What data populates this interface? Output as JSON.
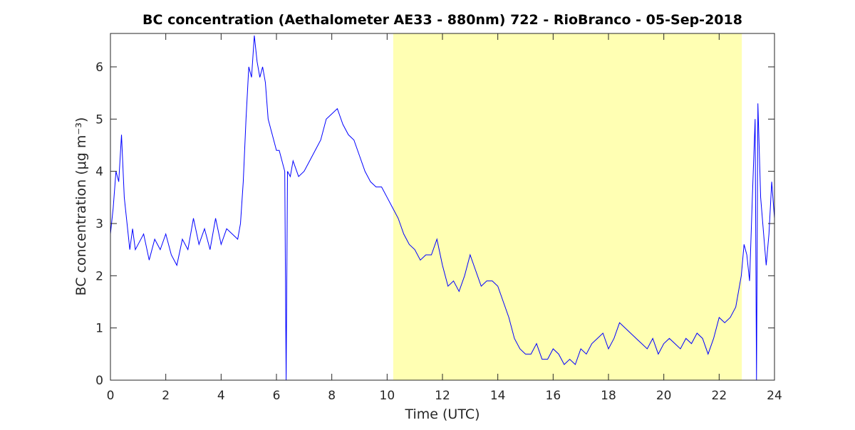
{
  "chart_data": {
    "type": "line",
    "title": "BC concentration (Aethalometer AE33 - 880nm) 722 - RioBranco - 05-Sep-2018",
    "x_label": "Time (UTC)",
    "y_label": "BC concentration (μg m⁻³)",
    "xlim": [
      0,
      24
    ],
    "ylim": [
      0,
      6.64
    ],
    "xticks": [
      0,
      2,
      4,
      6,
      8,
      10,
      12,
      14,
      16,
      18,
      20,
      22,
      24
    ],
    "yticks": [
      0,
      1,
      2,
      3,
      4,
      5,
      6
    ],
    "shaded_span": [
      10.22,
      22.82
    ],
    "shaded_color": "#ffffb3",
    "grid": false,
    "series": [
      {
        "color": "#0000ff",
        "x": [
          0,
          0.1,
          0.2,
          0.3,
          0.4,
          0.5,
          0.6,
          0.7,
          0.8,
          0.9,
          1.0,
          1.2,
          1.4,
          1.6,
          1.8,
          2.0,
          2.2,
          2.4,
          2.6,
          2.8,
          3.0,
          3.2,
          3.4,
          3.6,
          3.8,
          4.0,
          4.2,
          4.4,
          4.6,
          4.7,
          4.8,
          4.9,
          5.0,
          5.1,
          5.2,
          5.3,
          5.4,
          5.5,
          5.6,
          5.7,
          5.8,
          5.9,
          6.0,
          6.1,
          6.2,
          6.3,
          6.35,
          6.4,
          6.5,
          6.6,
          6.8,
          7.0,
          7.2,
          7.4,
          7.6,
          7.8,
          8.0,
          8.2,
          8.4,
          8.6,
          8.8,
          9.0,
          9.2,
          9.4,
          9.6,
          9.8,
          10.0,
          10.2,
          10.4,
          10.6,
          10.8,
          11.0,
          11.2,
          11.4,
          11.6,
          11.8,
          12.0,
          12.2,
          12.4,
          12.6,
          12.8,
          13.0,
          13.2,
          13.4,
          13.6,
          13.8,
          14.0,
          14.2,
          14.4,
          14.6,
          14.8,
          15.0,
          15.2,
          15.4,
          15.6,
          15.8,
          16.0,
          16.2,
          16.4,
          16.6,
          16.8,
          17.0,
          17.2,
          17.4,
          17.6,
          17.8,
          18.0,
          18.2,
          18.4,
          18.6,
          18.8,
          19.0,
          19.2,
          19.4,
          19.6,
          19.8,
          20.0,
          20.2,
          20.4,
          20.6,
          20.8,
          21.0,
          21.2,
          21.4,
          21.6,
          21.8,
          22.0,
          22.2,
          22.4,
          22.6,
          22.8,
          22.9,
          23.0,
          23.1,
          23.2,
          23.3,
          23.35,
          23.4,
          23.5,
          23.7,
          23.8,
          23.9,
          24.0
        ],
        "values": [
          2.8,
          3.3,
          4.0,
          3.8,
          4.7,
          3.5,
          3.0,
          2.5,
          2.9,
          2.5,
          2.6,
          2.8,
          2.3,
          2.7,
          2.5,
          2.8,
          2.4,
          2.2,
          2.7,
          2.5,
          3.1,
          2.6,
          2.9,
          2.5,
          3.1,
          2.6,
          2.9,
          2.8,
          2.7,
          3.0,
          3.8,
          5.0,
          6.0,
          5.8,
          6.6,
          6.1,
          5.8,
          6.0,
          5.7,
          5.0,
          4.8,
          4.6,
          4.4,
          4.4,
          4.2,
          4.0,
          0.0,
          4.0,
          3.9,
          4.2,
          3.9,
          4.0,
          4.2,
          4.4,
          4.6,
          5.0,
          5.1,
          5.2,
          4.9,
          4.7,
          4.6,
          4.3,
          4.0,
          3.8,
          3.7,
          3.7,
          3.5,
          3.3,
          3.1,
          2.8,
          2.6,
          2.5,
          2.3,
          2.4,
          2.4,
          2.7,
          2.2,
          1.8,
          1.9,
          1.7,
          2.0,
          2.4,
          2.1,
          1.8,
          1.9,
          1.9,
          1.8,
          1.5,
          1.2,
          0.8,
          0.6,
          0.5,
          0.5,
          0.7,
          0.4,
          0.4,
          0.6,
          0.5,
          0.3,
          0.4,
          0.3,
          0.6,
          0.5,
          0.7,
          0.8,
          0.9,
          0.6,
          0.8,
          1.1,
          1.0,
          0.9,
          0.8,
          0.7,
          0.6,
          0.8,
          0.5,
          0.7,
          0.8,
          0.7,
          0.6,
          0.8,
          0.7,
          0.9,
          0.8,
          0.5,
          0.8,
          1.2,
          1.1,
          1.2,
          1.4,
          2.0,
          2.6,
          2.4,
          1.9,
          3.5,
          5.0,
          0.0,
          5.3,
          3.5,
          2.2,
          2.8,
          3.8,
          3.1
        ]
      }
    ]
  }
}
